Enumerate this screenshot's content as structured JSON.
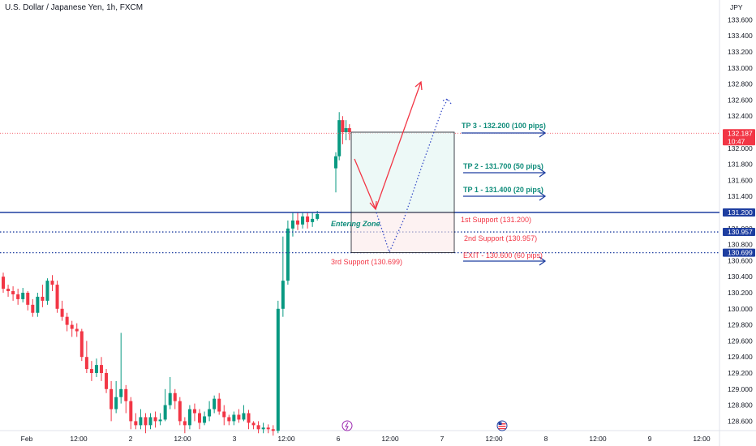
{
  "header": {
    "title": "U.S. Dollar / Japanese Yen, 1h, FXCM"
  },
  "colors": {
    "up": "#089981",
    "down": "#f23645",
    "blue": "#1e3ea0",
    "teal": "#0e8c7a",
    "red": "#f23645",
    "dotted_blue": "#3a4fc7"
  },
  "chart_data": {
    "type": "candlestick",
    "currency_label": "JPY",
    "y_ticks": [
      "133.600",
      "133.400",
      "133.200",
      "133.000",
      "132.800",
      "132.600",
      "132.400",
      "132.200",
      "132.000",
      "131.800",
      "131.600",
      "131.400",
      "131.200",
      "131.000",
      "130.800",
      "130.600",
      "130.400",
      "130.200",
      "130.000",
      "129.800",
      "129.600",
      "129.400",
      "129.200",
      "129.000",
      "128.800",
      "128.600"
    ],
    "ylim": [
      128.55,
      133.75
    ],
    "x_ticks": [
      "Feb",
      "12:00",
      "2",
      "12:00",
      "3",
      "12:00",
      "6",
      "12:00",
      "7",
      "12:00",
      "8",
      "12:00",
      "9",
      "12:00"
    ],
    "price_badges": [
      {
        "text": "132.187",
        "sub": "10:47",
        "value": 132.187,
        "color": "#f23645"
      },
      {
        "text": "131.200",
        "value": 131.2,
        "color": "#1e3ea0"
      },
      {
        "text": "130.957",
        "value": 130.957,
        "color": "#1e3ea0"
      },
      {
        "text": "130.699",
        "value": 130.699,
        "color": "#1e3ea0"
      }
    ],
    "levels": [
      {
        "name": "1st Support",
        "value": 131.2,
        "style": "solid"
      },
      {
        "name": "2nd Support",
        "value": 130.957,
        "style": "dotted"
      },
      {
        "name": "3rd Support",
        "value": 130.699,
        "style": "dotted"
      }
    ],
    "annotations": {
      "tp3": "TP 3 - 132.200 (100 pips)",
      "tp2": "TP 2 - 131.700 (50 pips)",
      "tp1": "TP 1 - 131.400 (20 pips)",
      "support1": "1st Support (131.200)",
      "support2": "2nd Support (130.957)",
      "support3": "3rd Support (130.699)",
      "exit": "EXIT - 130.600 (60 pips)",
      "entering_zone": "Entering Zone"
    },
    "candles": [
      [
        130.4,
        130.25,
        130.45,
        130.2
      ],
      [
        130.25,
        130.22,
        130.3,
        130.15
      ],
      [
        130.22,
        130.18,
        130.28,
        130.1
      ],
      [
        130.18,
        130.12,
        130.25,
        130.05
      ],
      [
        130.12,
        130.2,
        130.26,
        130.08
      ],
      [
        130.2,
        130.05,
        130.22,
        129.98
      ],
      [
        130.05,
        129.95,
        130.12,
        129.9
      ],
      [
        129.95,
        130.15,
        130.2,
        129.9
      ],
      [
        130.15,
        130.1,
        130.3,
        130.02
      ],
      [
        130.1,
        130.35,
        130.38,
        130.05
      ],
      [
        130.35,
        130.3,
        130.42,
        130.22
      ],
      [
        130.3,
        130.0,
        130.35,
        129.95
      ],
      [
        130.0,
        129.9,
        130.1,
        129.85
      ],
      [
        129.9,
        129.8,
        129.95,
        129.72
      ],
      [
        129.8,
        129.75,
        129.85,
        129.65
      ],
      [
        129.75,
        129.72,
        129.82,
        129.65
      ],
      [
        129.72,
        129.4,
        129.75,
        129.35
      ],
      [
        129.4,
        129.25,
        129.6,
        129.2
      ],
      [
        129.25,
        129.2,
        129.35,
        129.1
      ],
      [
        129.2,
        129.3,
        129.38,
        129.15
      ],
      [
        129.3,
        129.2,
        129.4,
        129.1
      ],
      [
        129.2,
        129.0,
        129.25,
        128.95
      ],
      [
        129.0,
        128.75,
        129.1,
        128.6
      ],
      [
        128.75,
        128.9,
        129.1,
        128.7
      ],
      [
        128.9,
        129.0,
        129.7,
        128.82
      ],
      [
        129.0,
        128.85,
        129.05,
        128.7
      ],
      [
        128.85,
        128.6,
        128.9,
        128.5
      ],
      [
        128.6,
        128.55,
        128.7,
        128.5
      ],
      [
        128.55,
        128.65,
        128.75,
        128.5
      ],
      [
        128.65,
        128.55,
        128.7,
        128.45
      ],
      [
        128.55,
        128.65,
        128.7,
        128.5
      ],
      [
        128.65,
        128.6,
        128.72,
        128.52
      ],
      [
        128.6,
        128.62,
        128.7,
        128.55
      ],
      [
        128.62,
        128.8,
        129.0,
        128.6
      ],
      [
        128.8,
        128.95,
        129.15,
        128.75
      ],
      [
        128.95,
        128.85,
        129.0,
        128.75
      ],
      [
        128.85,
        128.6,
        128.9,
        128.55
      ],
      [
        128.6,
        128.55,
        128.65,
        128.45
      ],
      [
        128.55,
        128.75,
        128.8,
        128.5
      ],
      [
        128.75,
        128.7,
        128.82,
        128.6
      ],
      [
        128.7,
        128.58,
        128.75,
        128.5
      ],
      [
        128.58,
        128.66,
        128.72,
        128.55
      ],
      [
        128.66,
        128.75,
        128.85,
        128.6
      ],
      [
        128.75,
        128.88,
        128.92,
        128.7
      ],
      [
        128.88,
        128.72,
        128.95,
        128.68
      ],
      [
        128.72,
        128.65,
        128.8,
        128.55
      ],
      [
        128.65,
        128.6,
        128.68,
        128.55
      ],
      [
        128.6,
        128.68,
        128.72,
        128.55
      ],
      [
        128.68,
        128.62,
        128.75,
        128.58
      ],
      [
        128.62,
        128.7,
        128.8,
        128.6
      ],
      [
        128.7,
        128.58,
        128.74,
        128.5
      ],
      [
        128.58,
        128.55,
        128.6,
        128.5
      ],
      [
        128.55,
        128.5,
        128.6,
        128.45
      ],
      [
        128.5,
        128.52,
        128.58,
        128.45
      ],
      [
        128.52,
        128.5,
        128.56,
        128.45
      ],
      [
        128.5,
        128.48,
        128.55,
        128.42
      ],
      [
        128.48,
        130.0,
        130.1,
        128.45
      ],
      [
        130.0,
        130.35,
        130.9,
        129.9
      ],
      [
        130.35,
        131.0,
        131.1,
        130.3
      ],
      [
        131.0,
        131.1,
        131.2,
        130.9
      ],
      [
        131.1,
        131.05,
        131.2,
        130.98
      ],
      [
        131.05,
        131.15,
        131.2,
        131.0
      ],
      [
        131.15,
        131.08,
        131.2,
        131.0
      ],
      [
        131.08,
        131.12,
        131.2,
        131.02
      ],
      [
        131.12,
        131.18,
        131.22,
        131.1
      ],
      [
        131.75,
        131.9,
        131.95,
        131.45
      ],
      [
        131.9,
        132.35,
        132.45,
        131.85
      ],
      [
        132.35,
        132.2,
        132.4,
        132.05
      ],
      [
        132.2,
        132.25,
        132.35,
        132.1
      ],
      [
        132.25,
        132.2,
        132.3,
        132.1
      ]
    ]
  }
}
